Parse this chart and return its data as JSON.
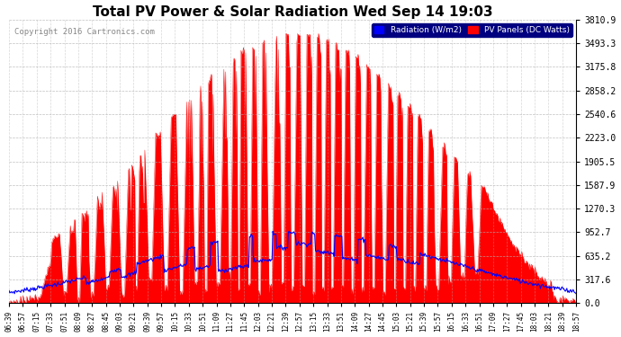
{
  "title": "Total PV Power & Solar Radiation Wed Sep 14 19:03",
  "copyright": "Copyright 2016 Cartronics.com",
  "legend_radiation": "Radiation (W/m2)",
  "legend_pv": "PV Panels (DC Watts)",
  "yticks": [
    0.0,
    317.6,
    635.2,
    952.7,
    1270.3,
    1587.9,
    1905.5,
    2223.0,
    2540.6,
    2858.2,
    3175.8,
    3493.3,
    3810.9
  ],
  "ymax": 3810.9,
  "bg_color": "#ffffff",
  "plot_bg_color": "#ffffff",
  "grid_color": "#b0b0b0",
  "pv_color": "#ff0000",
  "radiation_color": "#0000ff",
  "title_fontsize": 11,
  "xtick_labels": [
    "06:39",
    "06:57",
    "07:15",
    "07:33",
    "07:51",
    "08:09",
    "08:27",
    "08:45",
    "09:03",
    "09:21",
    "09:39",
    "09:57",
    "10:15",
    "10:33",
    "10:51",
    "11:09",
    "11:27",
    "11:45",
    "12:03",
    "12:21",
    "12:39",
    "12:57",
    "13:15",
    "13:33",
    "13:51",
    "14:09",
    "14:27",
    "14:45",
    "15:03",
    "15:21",
    "15:39",
    "15:57",
    "16:15",
    "16:33",
    "16:51",
    "17:09",
    "17:27",
    "17:45",
    "18:03",
    "18:21",
    "18:39",
    "18:57"
  ]
}
